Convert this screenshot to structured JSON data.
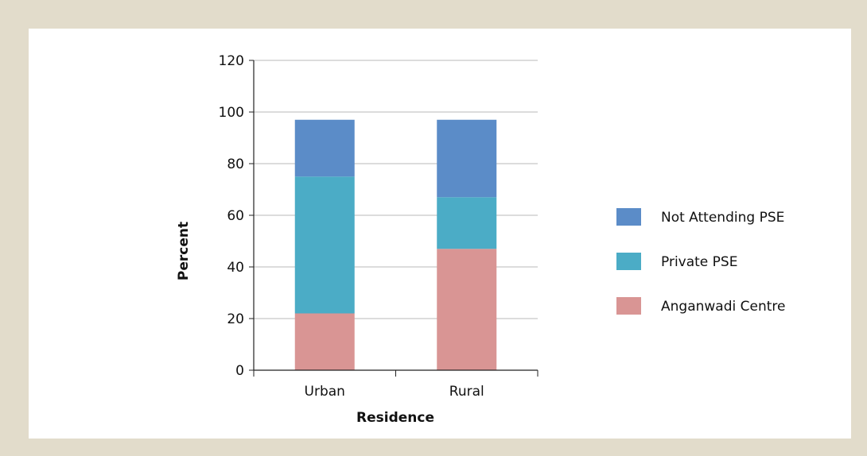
{
  "chart_data": {
    "type": "bar",
    "stacked": true,
    "categories": [
      "Urban",
      "Rural"
    ],
    "series": [
      {
        "name": "Anganwadi Centre",
        "values": [
          22,
          47
        ],
        "color": "#d99594"
      },
      {
        "name": "Private PSE",
        "values": [
          53,
          20
        ],
        "color": "#4bacc6"
      },
      {
        "name": "Not Attending PSE",
        "values": [
          22,
          30
        ],
        "color": "#5b8cc8"
      }
    ],
    "xlabel": "Residence",
    "ylabel": "Percent",
    "ylim": [
      0,
      120
    ],
    "yticks": [
      "0",
      "20",
      "40",
      "60",
      "80",
      "100",
      "120"
    ],
    "grid": true,
    "legend_position": "right",
    "legend_order": [
      "Not Attending PSE",
      "Private PSE",
      "Anganwadi Centre"
    ]
  }
}
